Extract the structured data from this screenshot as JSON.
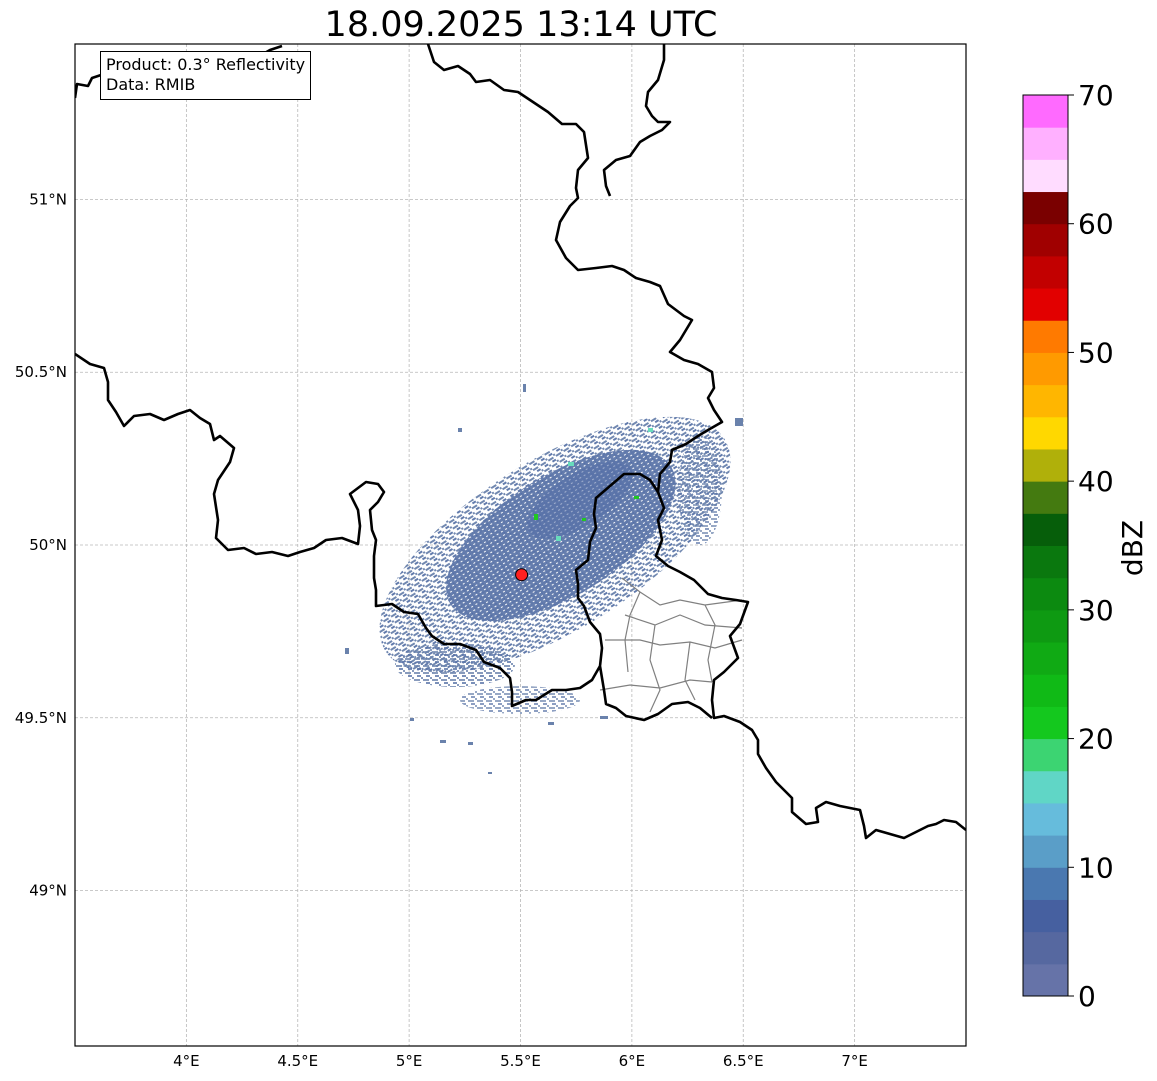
{
  "title": "18.09.2025 13:14 UTC",
  "annotation": {
    "product": "Product: 0.3° Reflectivity",
    "data_source": "Data: RMIB"
  },
  "map": {
    "lon_range": [
      3.5,
      7.5
    ],
    "lat_range": [
      48.55,
      51.45
    ],
    "x_ticks": [
      {
        "value": 4.0,
        "label": "4°E"
      },
      {
        "value": 4.5,
        "label": "4.5°E"
      },
      {
        "value": 5.0,
        "label": "5°E"
      },
      {
        "value": 5.5,
        "label": "5.5°E"
      },
      {
        "value": 6.0,
        "label": "6°E"
      },
      {
        "value": 6.5,
        "label": "6.5°E"
      },
      {
        "value": 7.0,
        "label": "7°E"
      }
    ],
    "y_ticks": [
      {
        "value": 49.0,
        "label": "49°N"
      },
      {
        "value": 49.5,
        "label": "49.5°N"
      },
      {
        "value": 50.0,
        "label": "50°N"
      },
      {
        "value": 50.5,
        "label": "50.5°N"
      },
      {
        "value": 51.0,
        "label": "51°N"
      }
    ],
    "radar_site": {
      "lon": 5.505,
      "lat": 49.914,
      "color": "#ff2020"
    }
  },
  "colorbar": {
    "label": "dBZ",
    "min": 0,
    "max": 70,
    "step": 2.5,
    "tick_labels": [
      "0",
      "10",
      "20",
      "30",
      "40",
      "50",
      "60",
      "70"
    ],
    "colors": [
      "#6673a8",
      "#5668a0",
      "#4660a0",
      "#4a78b0",
      "#5a9ec8",
      "#66bcdc",
      "#60d6c6",
      "#3cd472",
      "#14c81e",
      "#10ba16",
      "#10aa14",
      "#0e9a12",
      "#0c8a10",
      "#0a780e",
      "#065e0a",
      "#447a10",
      "#b0b00a",
      "#ffd800",
      "#ffb600",
      "#ff9a00",
      "#ff7a00",
      "#e20000",
      "#c20000",
      "#a00000",
      "#7a0000",
      "#ffdcff",
      "#ffb0ff",
      "#ff6aff",
      "#f03af0"
    ]
  },
  "palette": {
    "border": "#000000",
    "admin_border": "#808080",
    "echo_light": "#6a82ac",
    "echo_mid": "#4c68a8",
    "echo_high": "#68dcbc",
    "echo_core": "#20c820"
  }
}
